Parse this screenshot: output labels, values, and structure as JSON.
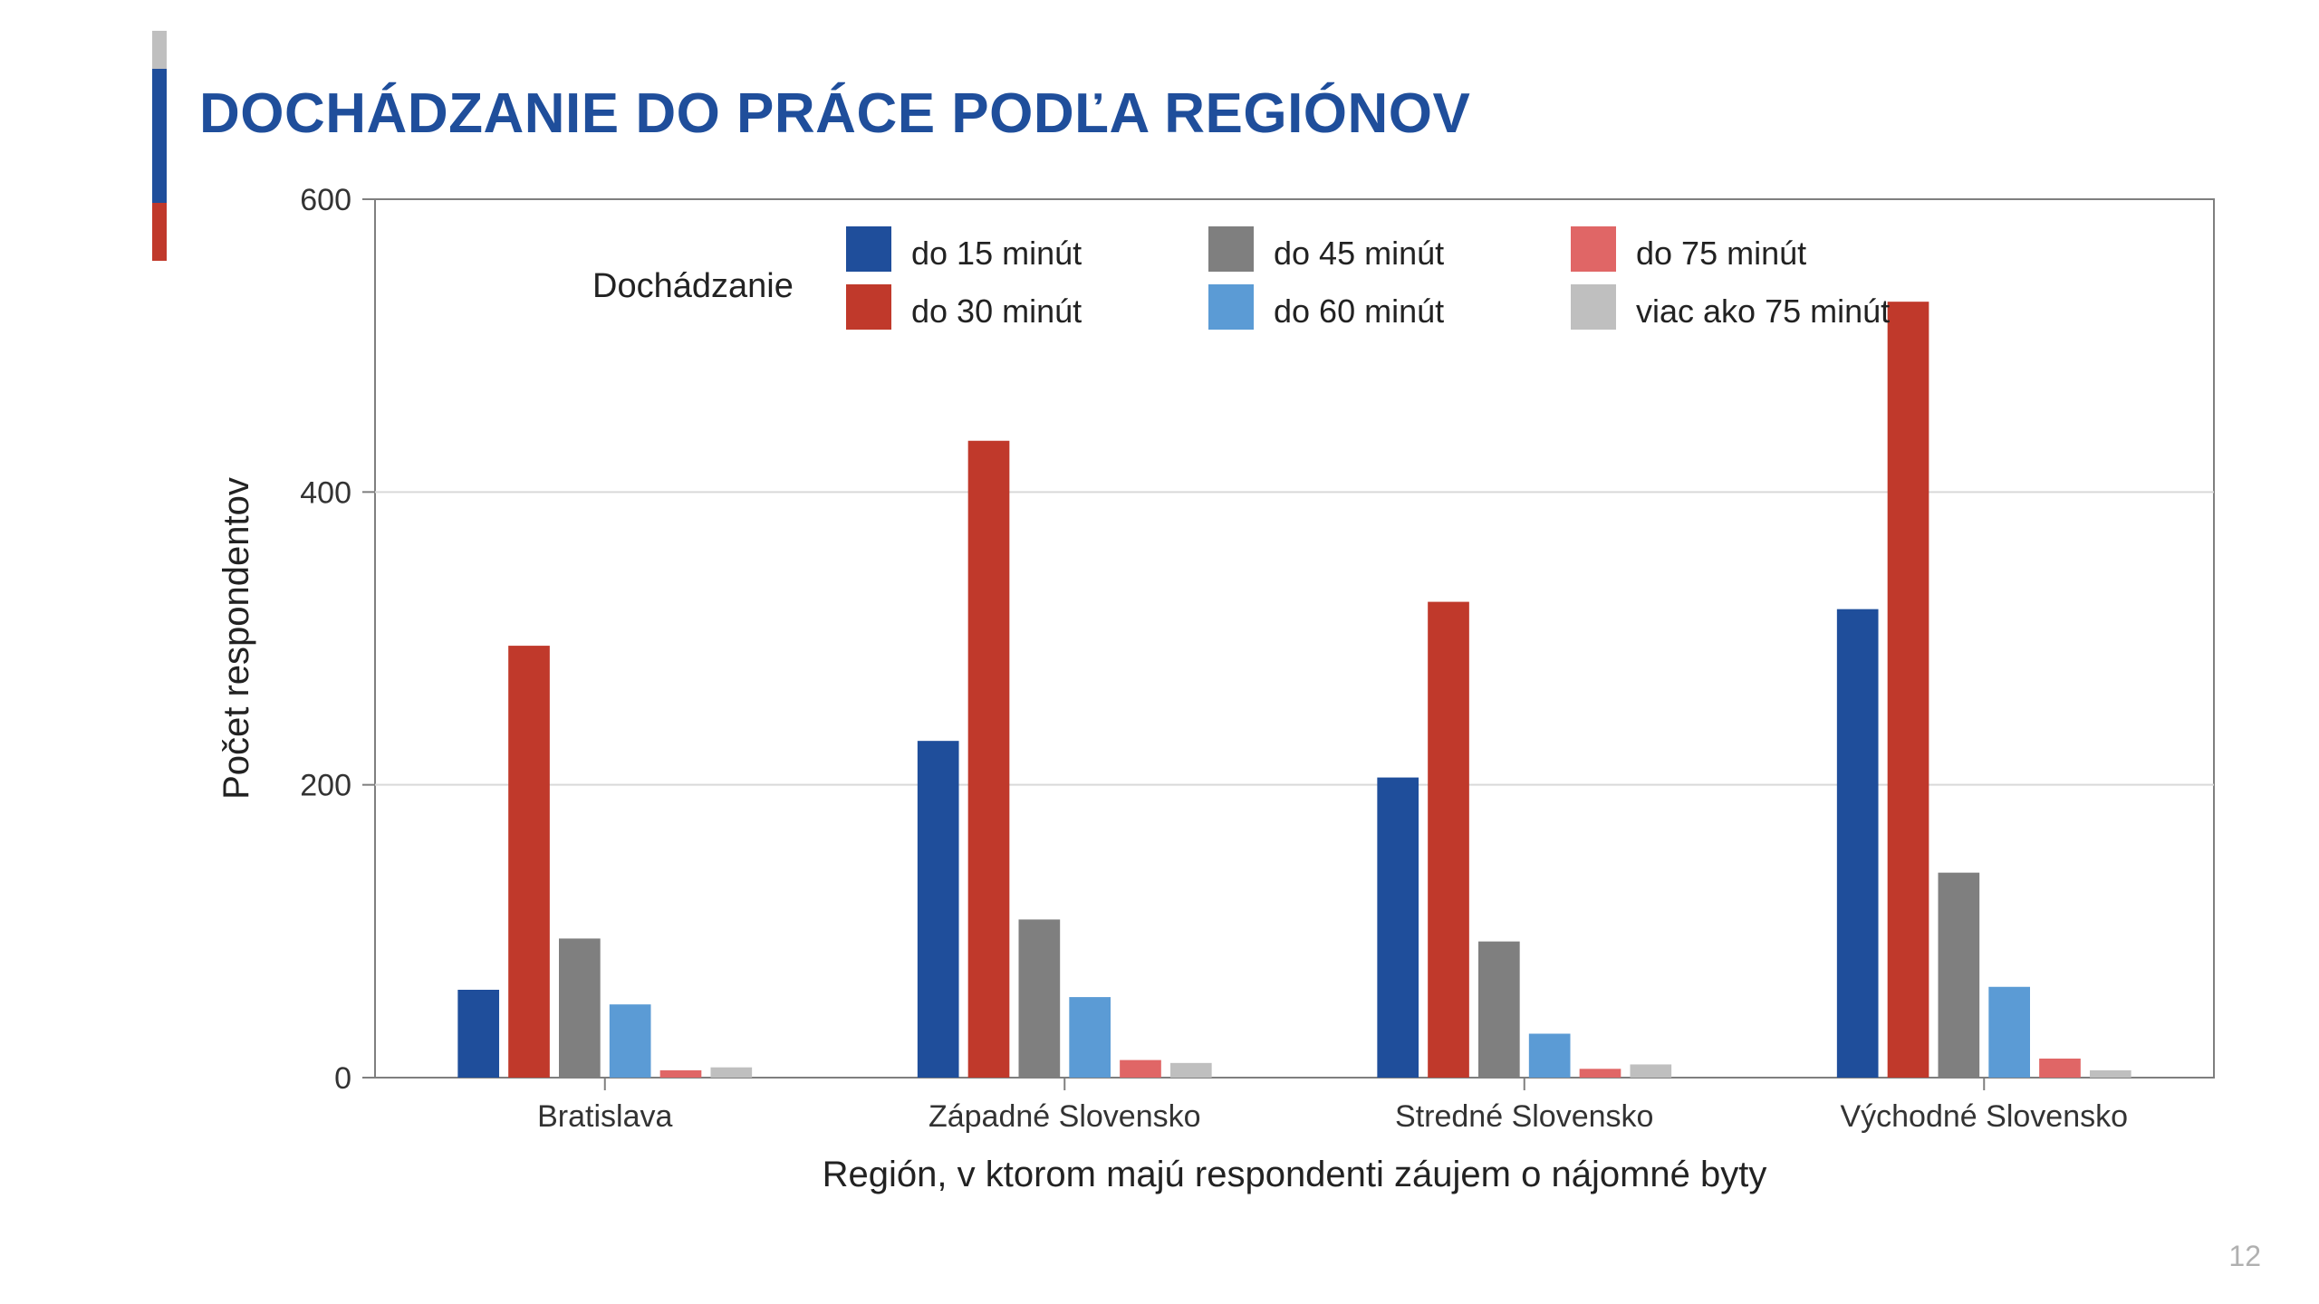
{
  "page": {
    "title": "DOCHÁDZANIE DO PRÁCE PODĽA REGIÓNOV",
    "page_number": "12"
  },
  "chart": {
    "type": "grouped-bar",
    "legend_title": "Dochádzanie",
    "ylabel": "Počet respondentov",
    "xlabel": "Región, v ktorom majú respondenti záujem o nájomné byty",
    "ylim": [
      0,
      600
    ],
    "ytick_step": 200,
    "yticks": [
      0,
      200,
      400,
      600
    ],
    "categories": [
      "Bratislava",
      "Západné Slovensko",
      "Stredné Slovensko",
      "Východné Slovensko"
    ],
    "series": [
      {
        "label": "do 15 minút",
        "color": "#1f4e9b",
        "values": [
          60,
          230,
          205,
          320
        ]
      },
      {
        "label": "do 30 minút",
        "color": "#c0392b",
        "values": [
          295,
          435,
          325,
          530
        ]
      },
      {
        "label": "do 45 minút",
        "color": "#7f7f7f",
        "values": [
          95,
          108,
          93,
          140
        ]
      },
      {
        "label": "do 60 minút",
        "color": "#5b9bd5",
        "values": [
          50,
          55,
          30,
          62
        ]
      },
      {
        "label": "do 75 minút",
        "color": "#e06666",
        "values": [
          5,
          12,
          6,
          13
        ]
      },
      {
        "label": "viac ako 75 minút",
        "color": "#bfbfbf",
        "values": [
          7,
          10,
          9,
          5
        ]
      }
    ],
    "plot_border_color": "#7f7f7f",
    "grid_color": "#d9d9d9",
    "background_color": "#ffffff",
    "axis_fontsize": 34,
    "label_fontsize": 40,
    "legend_fontsize": 36,
    "legend_title_fontsize": 38,
    "tick_color": "#333333",
    "bar_group_inner_gap": 0.02,
    "bar_group_outer_gap": 0.18
  }
}
